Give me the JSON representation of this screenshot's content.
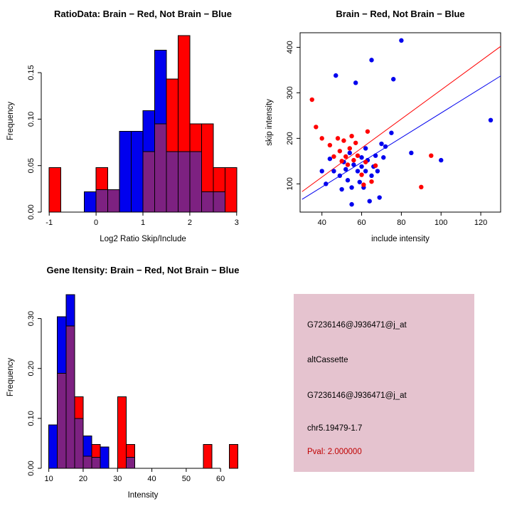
{
  "info": {
    "bg_color": "#e5c3cf",
    "pval_color": "#c00000",
    "lines": [
      "G7236146@J936471@j_at",
      "altCassette",
      "G7236146@J936471@j_at",
      "chr5.19479-1.7",
      "Pval: 2.000000"
    ]
  },
  "chart_data": [
    {
      "id": "chart-0",
      "type": "histogram",
      "title": "RatioData: Brain − Red, Not Brain − Blue",
      "xlabel": "Log2 Ratio Skip/Include",
      "ylabel": "Frequency",
      "xlim": [
        -1.17,
        3.17
      ],
      "ylim": [
        0,
        0.196
      ],
      "xticks": [
        -1,
        0,
        1,
        2,
        3
      ],
      "yticks": [
        0,
        0.05,
        0.1,
        0.15
      ],
      "ytick_decimals": 2,
      "bin_start": -1,
      "bin_width": 0.25,
      "series": {
        "red": "Brain",
        "blue": "Not Brain"
      },
      "colors": {
        "red": "#ff0000",
        "blue": "#0000ee",
        "overlap": "#7d2181"
      },
      "red": [
        0.048,
        0,
        0,
        0,
        0.048,
        0.024,
        0,
        0,
        0.065,
        0.095,
        0.143,
        0.19,
        0.095,
        0.095,
        0.048,
        0.048,
        0
      ],
      "blue": [
        0,
        0,
        0,
        0.022,
        0.024,
        0.024,
        0.087,
        0.087,
        0.109,
        0.174,
        0.065,
        0.065,
        0.065,
        0.022,
        0.022,
        0,
        0
      ]
    },
    {
      "id": "chart-1",
      "type": "scatter",
      "title": "Brain − Red, Not Brain − Blue",
      "xlabel": "include intensity",
      "ylabel": "skip intensity",
      "xlim": [
        29,
        130
      ],
      "ylim": [
        38,
        432
      ],
      "xticks": [
        40,
        60,
        80,
        100,
        120
      ],
      "yticks": [
        100,
        200,
        300,
        400
      ],
      "ytick_decimals": 0,
      "series": {
        "red": "Brain",
        "blue": "Not Brain"
      },
      "colors": {
        "red": "#ff0000",
        "blue": "#0000ee"
      },
      "red_points": [
        [
          35,
          285
        ],
        [
          37,
          225
        ],
        [
          40,
          200
        ],
        [
          44,
          185
        ],
        [
          46,
          160
        ],
        [
          48,
          200
        ],
        [
          49,
          172
        ],
        [
          50,
          150
        ],
        [
          51,
          195
        ],
        [
          52,
          160
        ],
        [
          53,
          142
        ],
        [
          54,
          178
        ],
        [
          55,
          205
        ],
        [
          56,
          152
        ],
        [
          57,
          190
        ],
        [
          58,
          162
        ],
        [
          60,
          120
        ],
        [
          61,
          98
        ],
        [
          62,
          148
        ],
        [
          63,
          215
        ],
        [
          65,
          105
        ],
        [
          67,
          140
        ],
        [
          90,
          93
        ],
        [
          95,
          162
        ]
      ],
      "blue_points": [
        [
          40,
          128
        ],
        [
          42,
          100
        ],
        [
          44,
          155
        ],
        [
          46,
          128
        ],
        [
          47,
          338
        ],
        [
          49,
          118
        ],
        [
          50,
          88
        ],
        [
          51,
          148
        ],
        [
          52,
          132
        ],
        [
          53,
          108
        ],
        [
          54,
          168
        ],
        [
          55,
          92
        ],
        [
          55,
          55
        ],
        [
          56,
          142
        ],
        [
          57,
          322
        ],
        [
          58,
          128
        ],
        [
          59,
          104
        ],
        [
          60,
          158
        ],
        [
          60,
          138
        ],
        [
          61,
          92
        ],
        [
          62,
          178
        ],
        [
          62,
          128
        ],
        [
          63,
          152
        ],
        [
          64,
          62
        ],
        [
          65,
          372
        ],
        [
          65,
          118
        ],
        [
          66,
          138
        ],
        [
          67,
          162
        ],
        [
          68,
          128
        ],
        [
          69,
          70
        ],
        [
          70,
          188
        ],
        [
          71,
          158
        ],
        [
          72,
          182
        ],
        [
          75,
          212
        ],
        [
          76,
          330
        ],
        [
          80,
          415
        ],
        [
          85,
          168
        ],
        [
          100,
          152
        ],
        [
          125,
          240
        ]
      ],
      "red_line": [
        [
          30,
          83
        ],
        [
          130,
          402
        ]
      ],
      "blue_line": [
        [
          30,
          66
        ],
        [
          130,
          337
        ]
      ]
    },
    {
      "id": "chart-2",
      "type": "histogram",
      "title": "Gene Itensity: Brain − Red, Not Brain − Blue",
      "xlabel": "Intensity",
      "ylabel": "Frequency",
      "xlim": [
        7.8,
        67
      ],
      "ylim": [
        0,
        0.365
      ],
      "xticks": [
        10,
        20,
        30,
        40,
        50,
        60
      ],
      "yticks": [
        0,
        0.1,
        0.2,
        0.3
      ],
      "ytick_decimals": 2,
      "bin_start": 10,
      "bin_width": 2.5,
      "series": {
        "red": "Brain",
        "blue": "Not Brain"
      },
      "colors": {
        "red": "#ff0000",
        "blue": "#0000ee",
        "overlap": "#7d2181"
      },
      "red": [
        0,
        0.19,
        0.285,
        0.143,
        0.024,
        0.048,
        0,
        0,
        0.143,
        0.048,
        0,
        0,
        0,
        0,
        0,
        0,
        0,
        0,
        0.048,
        0,
        0,
        0.048
      ],
      "blue": [
        0.087,
        0.304,
        0.348,
        0.1,
        0.065,
        0.022,
        0.043,
        0,
        0,
        0.022,
        0,
        0,
        0,
        0,
        0,
        0,
        0,
        0,
        0,
        0,
        0,
        0
      ]
    }
  ]
}
